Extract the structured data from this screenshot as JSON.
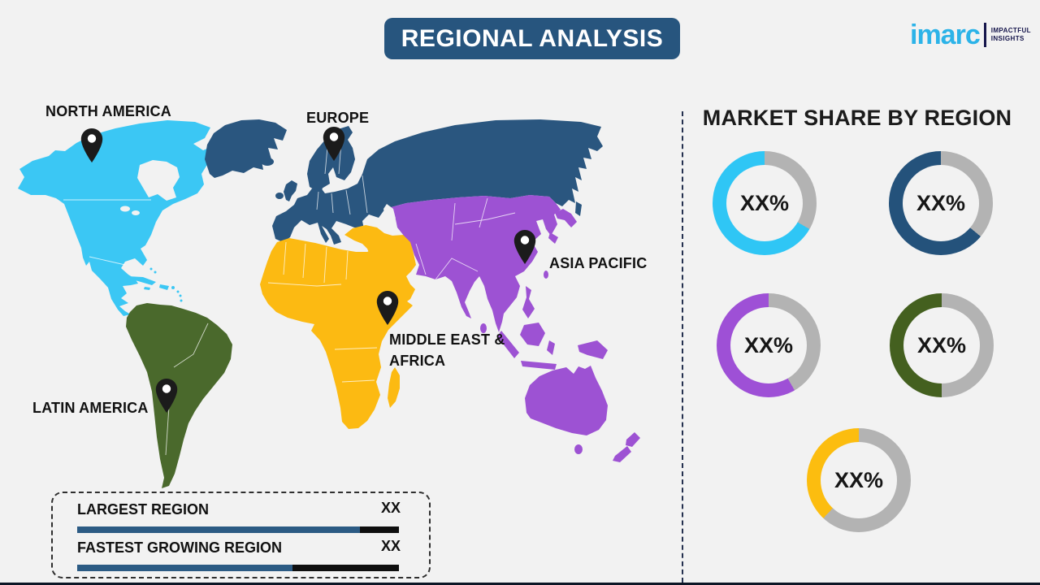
{
  "background": "#f2f2f2",
  "title": {
    "banner": "REGIONAL ANALYSIS"
  },
  "logo": {
    "wordmark": "imarc",
    "tagline_line1": "IMPACTFUL",
    "tagline_line2": "INSIGHTS",
    "wordmark_color": "#2cb3e8",
    "tagline_color": "#15154b"
  },
  "map": {
    "labels": {
      "north_america": "NORTH AMERICA",
      "europe": "EUROPE",
      "asia_pacific": "ASIA PACIFIC",
      "middle_east_africa": "MIDDLE EAST &\nAFRICA",
      "latin_america": "LATIN AMERICA"
    },
    "colors": {
      "north-america": "#3bc7f4",
      "europe": "#2a567f",
      "asia-pacific": "#9d52d3",
      "middle-east-africa": "#fcba12",
      "latin-america": "#4a692c",
      "pin": "#1b1b1b",
      "country-borders": "#ffffff"
    }
  },
  "market_share": {
    "heading": "MARKET SHARE BY REGION",
    "track_color": "#b3b3b3",
    "donuts": [
      {
        "region": "north-america",
        "label": "XX%",
        "color": "#2fc6f5",
        "gray_deg": 120
      },
      {
        "region": "europe",
        "label": "XX%",
        "color": "#24527b",
        "gray_deg": 130
      },
      {
        "region": "asia-pacific",
        "label": "XX%",
        "color": "#9e50d6",
        "gray_deg": 150
      },
      {
        "region": "latin-america",
        "label": "XX%",
        "color": "#44601f",
        "gray_deg": 180
      },
      {
        "region": "middle-east-africa",
        "label": "XX%",
        "color": "#fcbd0f",
        "gray_deg": 223
      }
    ]
  },
  "stats": {
    "bar_fill_color": "#2c5b84",
    "bar_rest_color": "#0f0f0f",
    "rows": [
      {
        "label": "LARGEST REGION",
        "value": "XX",
        "fill_pct": 88
      },
      {
        "label": "FASTEST GROWING REGION",
        "value": "XX",
        "fill_pct": 67
      }
    ]
  },
  "chart_data": [
    {
      "type": "pie",
      "subtype": "donut-set",
      "title": "MARKET SHARE BY REGION",
      "legend_position": "none",
      "donuts": [
        {
          "name": "NORTH AMERICA",
          "label": "XX%",
          "colored_arc_pct": 67
        },
        {
          "name": "EUROPE",
          "label": "XX%",
          "colored_arc_pct": 64
        },
        {
          "name": "ASIA PACIFIC",
          "label": "XX%",
          "colored_arc_pct": 58
        },
        {
          "name": "LATIN AMERICA",
          "label": "XX%",
          "colored_arc_pct": 50
        },
        {
          "name": "MIDDLE EAST & AFRICA",
          "label": "XX%",
          "colored_arc_pct": 38
        }
      ]
    },
    {
      "type": "bar",
      "categories": [
        "LARGEST REGION",
        "FASTEST GROWING REGION"
      ],
      "values": [
        "XX",
        "XX"
      ],
      "bar_fill_pct": [
        88,
        67
      ],
      "orientation": "horizontal"
    }
  ]
}
